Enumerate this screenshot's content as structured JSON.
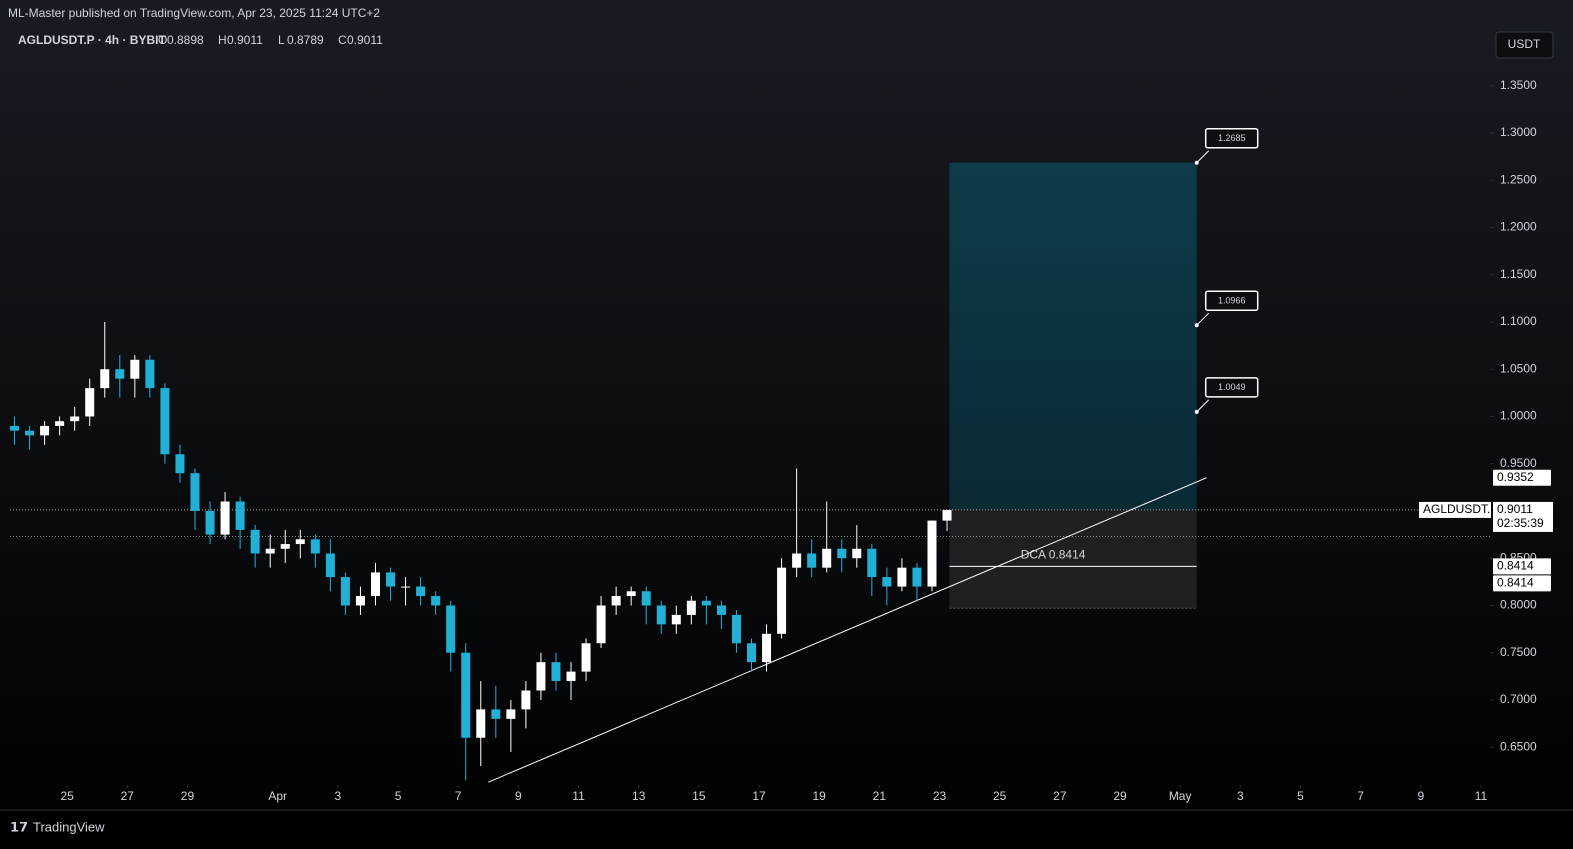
{
  "header": {
    "published": "ML-Master published on TradingView.com, Apr 23, 2025 11:24 UTC+2"
  },
  "footer": {
    "brand": "TradingView"
  },
  "chart_data": {
    "type": "candlestick",
    "title": "AGLDUSDT.P · 4h · BYBIT",
    "symbol": "AGLDUSDT.P",
    "currency": "USDT",
    "ohlc_letters": [
      "O",
      "H",
      "L",
      "C"
    ],
    "countdown": "02:35:39",
    "up_color": "#ffffff",
    "down_color": "#22b0d6",
    "x": [
      23.25,
      23.75,
      24.25,
      24.75,
      25.25,
      25.75,
      26.25,
      26.75,
      27.25,
      27.75,
      28.25,
      28.75,
      29.25,
      29.75,
      30.25,
      30.75,
      31.25,
      31.75,
      32.25,
      32.75,
      33.25,
      33.75,
      34.25,
      34.75,
      35.25,
      35.75,
      36.25,
      36.75,
      37.25,
      37.75,
      38.25,
      38.75,
      39.25,
      39.75,
      40.25,
      40.75,
      41.25,
      41.75,
      42.25,
      42.75,
      43.25,
      43.75,
      44.25,
      44.75,
      45.25,
      45.75,
      46.25,
      46.75,
      47.25,
      47.75,
      48.25,
      48.75,
      49.25,
      49.75,
      50.25,
      50.75,
      51.25,
      51.75,
      52.25,
      52.75,
      53.25,
      53.75,
      54.25
    ],
    "open": [
      0.99,
      0.985,
      0.98,
      0.99,
      0.995,
      1.0,
      1.03,
      1.05,
      1.04,
      1.06,
      1.03,
      0.96,
      0.94,
      0.9,
      0.875,
      0.91,
      0.88,
      0.855,
      0.86,
      0.865,
      0.87,
      0.855,
      0.83,
      0.8,
      0.81,
      0.835,
      0.82,
      0.82,
      0.81,
      0.8,
      0.75,
      0.66,
      0.69,
      0.68,
      0.69,
      0.71,
      0.74,
      0.72,
      0.73,
      0.76,
      0.8,
      0.81,
      0.815,
      0.8,
      0.78,
      0.79,
      0.805,
      0.8,
      0.79,
      0.76,
      0.74,
      0.77,
      0.84,
      0.855,
      0.84,
      0.86,
      0.85,
      0.86,
      0.83,
      0.82,
      0.84,
      0.82,
      0.8898
    ],
    "high": [
      1.0,
      0.99,
      0.995,
      1.0,
      1.01,
      1.04,
      1.1,
      1.065,
      1.065,
      1.065,
      1.035,
      0.97,
      0.945,
      0.91,
      0.92,
      0.915,
      0.885,
      0.875,
      0.88,
      0.88,
      0.875,
      0.87,
      0.835,
      0.82,
      0.845,
      0.84,
      0.83,
      0.83,
      0.815,
      0.805,
      0.76,
      0.72,
      0.715,
      0.7,
      0.72,
      0.75,
      0.75,
      0.74,
      0.765,
      0.81,
      0.82,
      0.82,
      0.82,
      0.805,
      0.8,
      0.81,
      0.81,
      0.805,
      0.795,
      0.765,
      0.78,
      0.85,
      0.945,
      0.87,
      0.91,
      0.87,
      0.885,
      0.865,
      0.84,
      0.85,
      0.845,
      0.89,
      0.9011
    ],
    "low": [
      0.97,
      0.965,
      0.97,
      0.98,
      0.985,
      0.99,
      1.02,
      1.02,
      1.02,
      1.02,
      0.95,
      0.93,
      0.88,
      0.865,
      0.87,
      0.86,
      0.84,
      0.84,
      0.845,
      0.85,
      0.84,
      0.815,
      0.79,
      0.79,
      0.8,
      0.805,
      0.8,
      0.8,
      0.79,
      0.73,
      0.615,
      0.63,
      0.66,
      0.645,
      0.67,
      0.7,
      0.71,
      0.7,
      0.72,
      0.755,
      0.79,
      0.8,
      0.78,
      0.77,
      0.77,
      0.78,
      0.78,
      0.775,
      0.75,
      0.73,
      0.73,
      0.765,
      0.83,
      0.83,
      0.835,
      0.835,
      0.84,
      0.81,
      0.8,
      0.815,
      0.805,
      0.815,
      0.8789
    ],
    "close": [
      0.985,
      0.98,
      0.99,
      0.995,
      1.0,
      1.03,
      1.05,
      1.04,
      1.06,
      1.03,
      0.96,
      0.94,
      0.9,
      0.875,
      0.91,
      0.88,
      0.855,
      0.86,
      0.865,
      0.87,
      0.855,
      0.83,
      0.8,
      0.81,
      0.835,
      0.82,
      0.82,
      0.81,
      0.8,
      0.75,
      0.66,
      0.69,
      0.68,
      0.69,
      0.71,
      0.74,
      0.72,
      0.73,
      0.76,
      0.8,
      0.81,
      0.815,
      0.8,
      0.78,
      0.79,
      0.805,
      0.8,
      0.79,
      0.76,
      0.74,
      0.77,
      0.84,
      0.855,
      0.84,
      0.86,
      0.85,
      0.86,
      0.83,
      0.82,
      0.84,
      0.82,
      0.8898,
      0.9011
    ],
    "xlim": [
      23.1,
      72.3
    ],
    "xticks": [
      25,
      27,
      29,
      {
        "value": 32,
        "label": "Apr"
      },
      {
        "value": 34,
        "label": "3"
      },
      {
        "value": 36,
        "label": "5"
      },
      {
        "value": 38,
        "label": "7"
      },
      {
        "value": 40,
        "label": "9"
      },
      {
        "value": 42,
        "label": "11"
      },
      {
        "value": 44,
        "label": "13"
      },
      {
        "value": 46,
        "label": "15"
      },
      {
        "value": 48,
        "label": "17"
      },
      {
        "value": 50,
        "label": "19"
      },
      {
        "value": 52,
        "label": "21"
      },
      {
        "value": 54,
        "label": "23"
      },
      {
        "value": 56,
        "label": "25"
      },
      {
        "value": 58,
        "label": "27"
      },
      {
        "value": 60,
        "label": "29"
      },
      {
        "value": 62,
        "label": "May"
      },
      {
        "value": 64,
        "label": "3"
      },
      {
        "value": 66,
        "label": "5"
      },
      {
        "value": 68,
        "label": "7"
      },
      {
        "value": 70,
        "label": "9"
      },
      {
        "value": 72,
        "label": "11"
      }
    ],
    "ylim": [
      0.61,
      1.409
    ],
    "yticks": [
      {
        "value": 0.65,
        "label": "0.6500"
      },
      {
        "value": 0.7,
        "label": "0.7000"
      },
      {
        "value": 0.75,
        "label": "0.7500"
      },
      {
        "value": 0.8,
        "label": "0.8000"
      },
      {
        "value": 0.85,
        "label": "0.8500"
      },
      {
        "value": 0.9,
        "label": "0.9000"
      },
      {
        "value": 0.95,
        "label": "0.9500"
      },
      {
        "value": 1.0,
        "label": "1.0000"
      },
      {
        "value": 1.05,
        "label": "1.0500"
      },
      {
        "value": 1.1,
        "label": "1.1000"
      },
      {
        "value": 1.15,
        "label": "1.1500"
      },
      {
        "value": 1.2,
        "label": "1.2000"
      },
      {
        "value": 1.25,
        "label": "1.2500"
      },
      {
        "value": 1.3,
        "label": "1.3000"
      },
      {
        "value": 1.35,
        "label": "1.3500"
      }
    ],
    "ref_line": 0.873,
    "trendline": {
      "x": [
        39.0,
        62.88
      ],
      "y": [
        0.613,
        0.9352
      ]
    },
    "position": {
      "x": [
        54.33,
        62.55
      ],
      "stop": 0.797,
      "targets": [
        1.0049,
        1.0966,
        1.2685
      ]
    },
    "dca": {
      "value": 0.8414,
      "label": "DCA 0.8414"
    }
  }
}
